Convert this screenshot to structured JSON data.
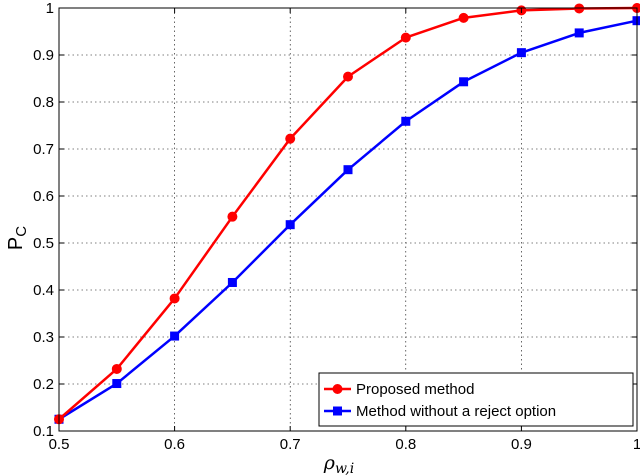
{
  "chart_data": {
    "type": "line",
    "x": [
      0.5,
      0.55,
      0.6,
      0.65,
      0.7,
      0.75,
      0.8,
      0.85,
      0.9,
      0.95,
      1.0
    ],
    "series": [
      {
        "name": "Proposed method",
        "color": "#ff0000",
        "marker": "circle",
        "values": [
          0.125,
          0.232,
          0.382,
          0.556,
          0.722,
          0.854,
          0.937,
          0.979,
          0.995,
          0.999,
          1.0
        ]
      },
      {
        "name": "Method without a reject option",
        "color": "#0000ff",
        "marker": "square",
        "values": [
          0.125,
          0.201,
          0.302,
          0.416,
          0.539,
          0.656,
          0.759,
          0.843,
          0.905,
          0.947,
          0.973
        ]
      }
    ],
    "xlabel_main": "ρ",
    "xlabel_sub": "w,i",
    "ylabel_main": "P",
    "ylabel_sub": "C",
    "xlim": [
      0.5,
      1.0
    ],
    "ylim": [
      0.1,
      1.0
    ],
    "xticks": [
      "0.5",
      "0.6",
      "0.7",
      "0.8",
      "0.9",
      "1"
    ],
    "yticks": [
      "0.1",
      "0.2",
      "0.3",
      "0.4",
      "0.5",
      "0.6",
      "0.7",
      "0.8",
      "0.9",
      "1"
    ],
    "grid": true,
    "legend_position": "bottom-right"
  }
}
